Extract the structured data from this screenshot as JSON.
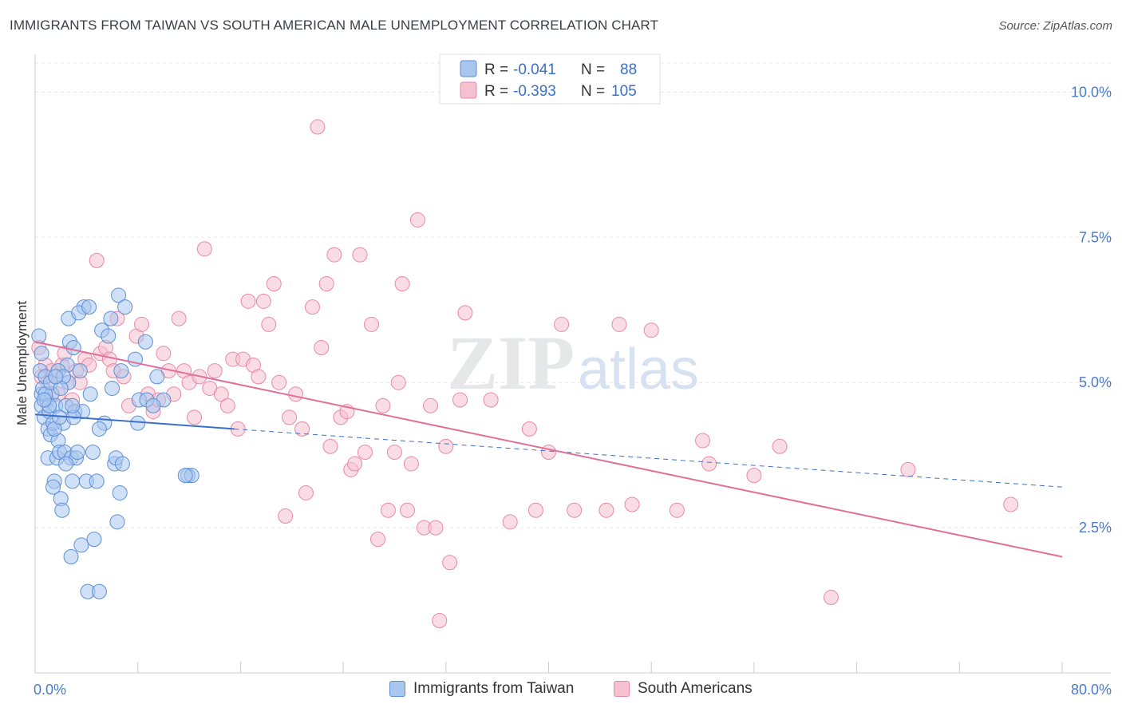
{
  "title": "IMMIGRANTS FROM TAIWAN VS SOUTH AMERICAN MALE UNEMPLOYMENT CORRELATION CHART",
  "source": "Source: ZipAtlas.com",
  "watermark": {
    "zip": "ZIP",
    "atlas": "atlas"
  },
  "legend": {
    "rows": [
      {
        "r_label": "R = ",
        "r_value": "-0.041",
        "n_label": "N = ",
        "n_value": "88"
      },
      {
        "r_label": "R = ",
        "r_value": "-0.393",
        "n_label": "N = ",
        "n_value": "105"
      }
    ]
  },
  "bottom_legend": [
    {
      "label": "Immigrants from Taiwan"
    },
    {
      "label": "South Americans"
    }
  ],
  "colors": {
    "taiwan_fill": "#a9c6ee",
    "taiwan_stroke": "#5b8fd6",
    "taiwan_line": "#3a70c8",
    "south_fill": "#f5c0d0",
    "south_stroke": "#e889a8",
    "south_line": "#e0709a",
    "grid": "#e3e6ea",
    "tick_label": "#4a7cc7"
  },
  "chart_data": {
    "type": "scatter",
    "title": "IMMIGRANTS FROM TAIWAN VS SOUTH AMERICAN MALE UNEMPLOYMENT CORRELATION CHART",
    "xlabel": "",
    "ylabel": "Male Unemployment",
    "xlim": [
      0,
      80
    ],
    "ylim": [
      0,
      10.5
    ],
    "x_tick_labels": [
      "0.0%",
      "80.0%"
    ],
    "y_ticks": [
      2.5,
      5.0,
      7.5,
      10.0
    ],
    "y_tick_labels": [
      "2.5%",
      "5.0%",
      "7.5%",
      "10.0%"
    ],
    "series": [
      {
        "name": "Immigrants from Taiwan",
        "R": -0.041,
        "N": 88,
        "trend": {
          "x0": 0,
          "y0": 4.45,
          "x1": 15.5,
          "y1": 4.2,
          "dash_x1": 80,
          "dash_y1": 3.2
        },
        "points": [
          [
            0.3,
            5.8
          ],
          [
            0.4,
            5.2
          ],
          [
            0.5,
            4.8
          ],
          [
            0.5,
            4.6
          ],
          [
            0.6,
            4.9
          ],
          [
            0.7,
            4.4
          ],
          [
            0.8,
            5.1
          ],
          [
            0.9,
            4.7
          ],
          [
            1.0,
            4.2
          ],
          [
            1.0,
            3.7
          ],
          [
            1.1,
            4.5
          ],
          [
            1.2,
            4.1
          ],
          [
            1.3,
            4.8
          ],
          [
            1.4,
            4.3
          ],
          [
            1.5,
            3.3
          ],
          [
            1.6,
            4.6
          ],
          [
            1.7,
            3.7
          ],
          [
            1.8,
            4.0
          ],
          [
            1.9,
            3.8
          ],
          [
            2.0,
            3.0
          ],
          [
            2.1,
            2.8
          ],
          [
            2.2,
            4.3
          ],
          [
            2.3,
            3.8
          ],
          [
            2.4,
            4.6
          ],
          [
            2.5,
            5.3
          ],
          [
            2.6,
            5.0
          ],
          [
            2.7,
            5.7
          ],
          [
            2.8,
            3.7
          ],
          [
            2.9,
            3.3
          ],
          [
            3.0,
            5.6
          ],
          [
            3.1,
            4.5
          ],
          [
            3.2,
            3.7
          ],
          [
            3.5,
            5.2
          ],
          [
            3.6,
            2.2
          ],
          [
            3.7,
            4.5
          ],
          [
            3.8,
            6.3
          ],
          [
            4.0,
            3.3
          ],
          [
            4.1,
            1.4
          ],
          [
            4.3,
            4.8
          ],
          [
            4.5,
            3.8
          ],
          [
            4.6,
            2.3
          ],
          [
            4.8,
            3.3
          ],
          [
            5.0,
            1.4
          ],
          [
            5.2,
            5.9
          ],
          [
            5.4,
            4.3
          ],
          [
            5.7,
            5.8
          ],
          [
            6.2,
            3.6
          ],
          [
            6.3,
            3.7
          ],
          [
            6.4,
            2.6
          ],
          [
            6.6,
            3.1
          ],
          [
            6.8,
            3.6
          ],
          [
            8.0,
            4.3
          ],
          [
            8.1,
            4.7
          ],
          [
            8.6,
            5.7
          ],
          [
            9.5,
            5.1
          ],
          [
            11.9,
            3.4
          ],
          [
            12.2,
            3.4
          ],
          [
            0.8,
            4.8
          ],
          [
            1.2,
            5.0
          ],
          [
            1.8,
            5.2
          ],
          [
            2.2,
            5.1
          ],
          [
            2.6,
            6.1
          ],
          [
            3.4,
            6.2
          ],
          [
            4.2,
            6.3
          ],
          [
            5.0,
            4.2
          ],
          [
            5.9,
            6.1
          ],
          [
            6.5,
            6.5
          ],
          [
            7.0,
            6.3
          ],
          [
            7.8,
            5.4
          ],
          [
            8.7,
            4.7
          ],
          [
            10.0,
            4.7
          ],
          [
            11.7,
            3.4
          ],
          [
            1.1,
            4.6
          ],
          [
            1.5,
            4.2
          ],
          [
            1.9,
            4.4
          ],
          [
            2.4,
            3.6
          ],
          [
            2.8,
            2.0
          ],
          [
            3.3,
            3.8
          ],
          [
            0.5,
            5.5
          ],
          [
            0.7,
            4.7
          ],
          [
            1.4,
            3.2
          ],
          [
            2.0,
            4.9
          ],
          [
            3.0,
            4.4
          ],
          [
            6.0,
            4.9
          ],
          [
            6.7,
            5.2
          ],
          [
            9.2,
            4.6
          ],
          [
            1.6,
            5.1
          ],
          [
            2.9,
            4.6
          ]
        ]
      },
      {
        "name": "South Americans",
        "R": -0.393,
        "N": 105,
        "trend": {
          "x0": 0,
          "y0": 5.7,
          "x1": 80,
          "y1": 2.0
        },
        "points": [
          [
            0.3,
            5.6
          ],
          [
            0.5,
            5.1
          ],
          [
            0.8,
            5.3
          ],
          [
            1.0,
            5.0
          ],
          [
            1.3,
            5.2
          ],
          [
            1.6,
            5.1
          ],
          [
            1.8,
            4.8
          ],
          [
            2.1,
            5.3
          ],
          [
            2.3,
            5.5
          ],
          [
            2.6,
            5.0
          ],
          [
            2.9,
            4.7
          ],
          [
            3.2,
            5.2
          ],
          [
            3.5,
            5.0
          ],
          [
            3.9,
            5.4
          ],
          [
            4.2,
            5.3
          ],
          [
            4.8,
            7.1
          ],
          [
            5.1,
            5.5
          ],
          [
            5.5,
            5.6
          ],
          [
            5.8,
            5.4
          ],
          [
            6.1,
            5.2
          ],
          [
            6.4,
            6.1
          ],
          [
            6.9,
            5.1
          ],
          [
            7.3,
            4.6
          ],
          [
            7.9,
            5.8
          ],
          [
            8.3,
            6.0
          ],
          [
            8.8,
            4.8
          ],
          [
            9.2,
            4.5
          ],
          [
            9.6,
            4.7
          ],
          [
            10.0,
            5.5
          ],
          [
            10.4,
            5.2
          ],
          [
            10.8,
            4.8
          ],
          [
            11.2,
            6.1
          ],
          [
            11.6,
            5.2
          ],
          [
            12.0,
            5.0
          ],
          [
            12.4,
            4.4
          ],
          [
            12.8,
            5.1
          ],
          [
            13.2,
            7.3
          ],
          [
            13.6,
            4.9
          ],
          [
            14.0,
            5.2
          ],
          [
            14.5,
            4.8
          ],
          [
            15.0,
            4.6
          ],
          [
            15.4,
            5.4
          ],
          [
            15.8,
            4.2
          ],
          [
            16.2,
            5.4
          ],
          [
            16.6,
            6.4
          ],
          [
            17.0,
            5.3
          ],
          [
            17.4,
            5.1
          ],
          [
            17.8,
            6.4
          ],
          [
            18.2,
            6.0
          ],
          [
            18.6,
            6.7
          ],
          [
            19.0,
            5.0
          ],
          [
            19.5,
            2.7
          ],
          [
            19.8,
            4.4
          ],
          [
            20.3,
            4.8
          ],
          [
            20.8,
            4.2
          ],
          [
            21.1,
            3.1
          ],
          [
            21.6,
            6.3
          ],
          [
            22.0,
            9.4
          ],
          [
            22.3,
            5.6
          ],
          [
            22.7,
            6.7
          ],
          [
            23.0,
            3.9
          ],
          [
            23.3,
            7.2
          ],
          [
            23.8,
            4.4
          ],
          [
            24.3,
            4.5
          ],
          [
            24.6,
            3.5
          ],
          [
            24.9,
            3.6
          ],
          [
            25.3,
            7.2
          ],
          [
            25.7,
            3.8
          ],
          [
            26.2,
            6.0
          ],
          [
            26.7,
            2.3
          ],
          [
            27.1,
            4.6
          ],
          [
            27.5,
            2.8
          ],
          [
            28.0,
            3.8
          ],
          [
            28.3,
            5.0
          ],
          [
            28.6,
            6.7
          ],
          [
            29.0,
            2.8
          ],
          [
            29.3,
            3.6
          ],
          [
            29.8,
            7.8
          ],
          [
            30.3,
            2.5
          ],
          [
            30.8,
            4.6
          ],
          [
            31.2,
            2.5
          ],
          [
            31.5,
            0.9
          ],
          [
            32.0,
            3.9
          ],
          [
            32.3,
            1.9
          ],
          [
            33.1,
            4.7
          ],
          [
            33.5,
            6.2
          ],
          [
            35.5,
            4.7
          ],
          [
            37.0,
            2.6
          ],
          [
            38.5,
            4.2
          ],
          [
            39.0,
            2.8
          ],
          [
            40.0,
            3.8
          ],
          [
            41.0,
            6.0
          ],
          [
            42.0,
            2.8
          ],
          [
            44.5,
            2.8
          ],
          [
            45.5,
            6.0
          ],
          [
            46.5,
            2.9
          ],
          [
            48.0,
            5.9
          ],
          [
            50.0,
            2.8
          ],
          [
            52.0,
            4.0
          ],
          [
            52.5,
            3.6
          ],
          [
            56.0,
            3.4
          ],
          [
            58.0,
            3.9
          ],
          [
            62.0,
            1.3
          ],
          [
            68.0,
            3.5
          ],
          [
            76.0,
            2.9
          ]
        ]
      }
    ]
  }
}
